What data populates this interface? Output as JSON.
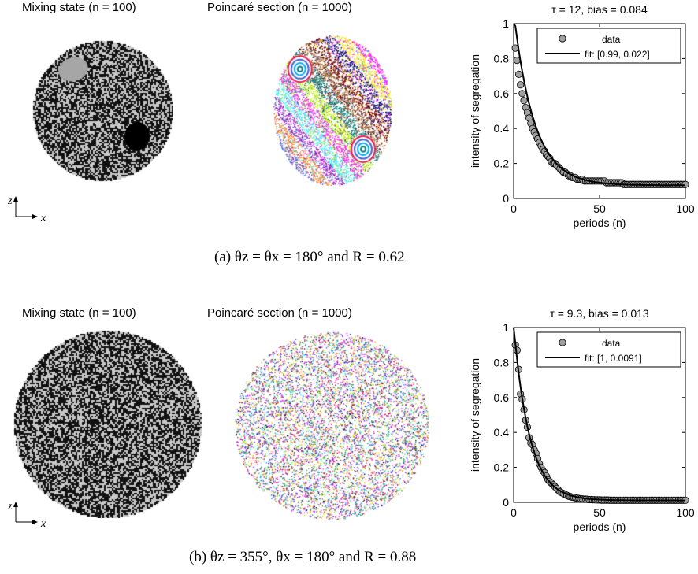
{
  "panels": [
    {
      "mixing_title": "Mixing state (n = 100)",
      "poincare_title": "Poincaré section (n = 1000)",
      "axis_z": "z",
      "axis_x": "x",
      "caption": "(a) θz = θx = 180° and R̄ = 0.62",
      "colors": {
        "noise_dark": "#111111",
        "noise_light": "#c8c8c8",
        "blob_light": "#a6a6a6",
        "blob_dark": "#000000"
      }
    },
    {
      "mixing_title": "Mixing state (n = 100)",
      "poincare_title": "Poincaré section (n = 1000)",
      "axis_z": "z",
      "axis_x": "x",
      "caption": "(b) θz = 355°, θx = 180° and R̄ = 0.88",
      "colors": {
        "noise_dark": "#111111",
        "noise_light": "#c8c8c8"
      }
    }
  ],
  "chart_data": [
    {
      "type": "scatter",
      "title": "τ = 12,  bias = 0.084",
      "xlabel": "periods (n)",
      "ylabel": "intensity of segregation",
      "xlim": [
        0,
        100
      ],
      "ylim": [
        0,
        1
      ],
      "xticks": [
        "0",
        "50",
        "100"
      ],
      "yticks": [
        "0",
        "0.2",
        "0.4",
        "0.6",
        "0.8",
        "1"
      ],
      "legend": [
        "data",
        "fit: [0.99, 0.022]"
      ],
      "legend_position": "top-right",
      "fit": {
        "a": 0.99,
        "tau": 12,
        "c": 0.075
      },
      "x": [
        1,
        2,
        3,
        4,
        5,
        6,
        7,
        8,
        9,
        10,
        11,
        12,
        13,
        14,
        15,
        16,
        17,
        18,
        19,
        20,
        21,
        22,
        23,
        24,
        25,
        26,
        27,
        28,
        29,
        30,
        31,
        32,
        33,
        34,
        35,
        36,
        37,
        38,
        39,
        40,
        41,
        42,
        43,
        44,
        45,
        46,
        47,
        48,
        49,
        50,
        51,
        52,
        53,
        54,
        55,
        56,
        57,
        58,
        59,
        60,
        61,
        62,
        63,
        64,
        65,
        66,
        67,
        68,
        69,
        70,
        71,
        72,
        73,
        74,
        75,
        76,
        77,
        78,
        79,
        80,
        81,
        82,
        83,
        84,
        85,
        86,
        87,
        88,
        89,
        90,
        91,
        92,
        93,
        94,
        95,
        96,
        97,
        98,
        99,
        100
      ],
      "y": [
        0.86,
        0.79,
        0.71,
        0.65,
        0.6,
        0.56,
        0.52,
        0.49,
        0.46,
        0.43,
        0.4,
        0.38,
        0.36,
        0.34,
        0.32,
        0.3,
        0.28,
        0.27,
        0.25,
        0.24,
        0.23,
        0.21,
        0.2,
        0.2,
        0.19,
        0.18,
        0.17,
        0.16,
        0.15,
        0.15,
        0.14,
        0.13,
        0.13,
        0.12,
        0.12,
        0.12,
        0.11,
        0.11,
        0.11,
        0.11,
        0.1,
        0.1,
        0.1,
        0.1,
        0.1,
        0.1,
        0.1,
        0.1,
        0.1,
        0.1,
        0.1,
        0.1,
        0.1,
        0.09,
        0.09,
        0.09,
        0.09,
        0.09,
        0.09,
        0.09,
        0.09,
        0.09,
        0.09,
        0.08,
        0.08,
        0.08,
        0.08,
        0.08,
        0.08,
        0.08,
        0.08,
        0.08,
        0.08,
        0.08,
        0.08,
        0.08,
        0.08,
        0.08,
        0.08,
        0.08,
        0.08,
        0.08,
        0.08,
        0.08,
        0.08,
        0.08,
        0.08,
        0.08,
        0.08,
        0.08,
        0.08,
        0.08,
        0.08,
        0.08,
        0.08,
        0.08,
        0.08,
        0.08,
        0.08,
        0.08
      ]
    },
    {
      "type": "scatter",
      "title": "τ = 9.3,  bias = 0.013",
      "xlabel": "periods (n)",
      "ylabel": "intensity of segregation",
      "xlim": [
        0,
        100
      ],
      "ylim": [
        0,
        1
      ],
      "xticks": [
        "0",
        "50",
        "100"
      ],
      "yticks": [
        "0",
        "0.2",
        "0.4",
        "0.6",
        "0.8",
        "1"
      ],
      "legend": [
        "data",
        "fit: [1, 0.0091]"
      ],
      "legend_position": "top-right",
      "fit": {
        "a": 1,
        "tau": 9.3,
        "c": 0.011
      },
      "x": [
        1,
        2,
        3,
        4,
        5,
        6,
        7,
        8,
        9,
        10,
        11,
        12,
        13,
        14,
        15,
        16,
        17,
        18,
        19,
        20,
        21,
        22,
        23,
        24,
        25,
        26,
        27,
        28,
        29,
        30,
        31,
        32,
        33,
        34,
        35,
        36,
        37,
        38,
        39,
        40,
        41,
        42,
        43,
        44,
        45,
        46,
        47,
        48,
        49,
        50,
        51,
        52,
        53,
        54,
        55,
        56,
        57,
        58,
        59,
        60,
        61,
        62,
        63,
        64,
        65,
        66,
        67,
        68,
        69,
        70,
        71,
        72,
        73,
        74,
        75,
        76,
        77,
        78,
        79,
        80,
        81,
        82,
        83,
        84,
        85,
        86,
        87,
        88,
        89,
        90,
        91,
        92,
        93,
        94,
        95,
        96,
        97,
        98,
        99,
        100
      ],
      "y": [
        0.9,
        0.87,
        0.76,
        0.62,
        0.59,
        0.53,
        0.47,
        0.43,
        0.37,
        0.34,
        0.33,
        0.3,
        0.28,
        0.25,
        0.22,
        0.2,
        0.18,
        0.17,
        0.15,
        0.13,
        0.12,
        0.11,
        0.1,
        0.09,
        0.08,
        0.07,
        0.06,
        0.055,
        0.05,
        0.045,
        0.04,
        0.035,
        0.033,
        0.03,
        0.028,
        0.026,
        0.024,
        0.022,
        0.02,
        0.02,
        0.018,
        0.018,
        0.017,
        0.016,
        0.016,
        0.015,
        0.015,
        0.014,
        0.014,
        0.014,
        0.013,
        0.013,
        0.013,
        0.013,
        0.013,
        0.012,
        0.012,
        0.012,
        0.012,
        0.012,
        0.012,
        0.012,
        0.012,
        0.012,
        0.012,
        0.012,
        0.012,
        0.012,
        0.012,
        0.012,
        0.012,
        0.012,
        0.012,
        0.012,
        0.012,
        0.012,
        0.012,
        0.012,
        0.012,
        0.012,
        0.012,
        0.012,
        0.012,
        0.012,
        0.012,
        0.012,
        0.012,
        0.012,
        0.012,
        0.012,
        0.012,
        0.012,
        0.012,
        0.012,
        0.012,
        0.012,
        0.012,
        0.012,
        0.012,
        0.012
      ]
    }
  ]
}
